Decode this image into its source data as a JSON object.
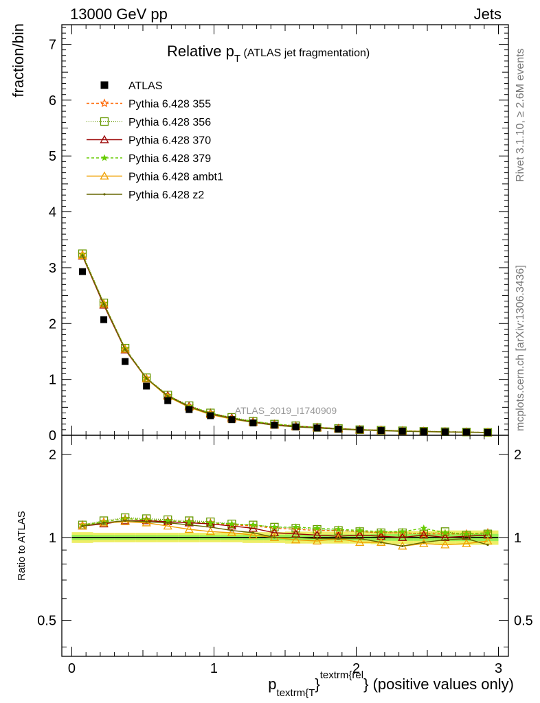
{
  "header": {
    "left": "13000 GeV pp",
    "right": "Jets",
    "title_main": "Relative p",
    "title_sub": "T",
    "title_rest": " (ATLAS jet fragmentation)",
    "analysis_tag": "ATLAS_2019_I1740909",
    "side_rivet": "Rivet 3.1.10, ≥ 2.6M events",
    "side_mcplots": "mcplots.cern.ch [arXiv:1306.3436]"
  },
  "axes": {
    "ylabel_main": "fraction/bin",
    "ylabel_ratio": "Ratio to ATLAS",
    "xlabel_p": "p",
    "xlabel_sub": "textrm{T",
    "xlabel_brace": "}",
    "xlabel_sup": "textrm{rel",
    "xlabel_rest": "} (positive values only)",
    "main_yticks": [
      "0",
      "1",
      "2",
      "3",
      "4",
      "5",
      "6",
      "7"
    ],
    "ratio_yticks": [
      "0.5",
      "1",
      "2"
    ],
    "xticks": [
      "0",
      "1",
      "2",
      "3"
    ]
  },
  "chart_data": [
    {
      "type": "line",
      "panel": "main",
      "xlim": [
        -0.07,
        3.07
      ],
      "ylim": [
        0,
        7.35
      ],
      "x": [
        0.075,
        0.225,
        0.375,
        0.525,
        0.675,
        0.825,
        0.975,
        1.125,
        1.275,
        1.425,
        1.575,
        1.725,
        1.875,
        2.025,
        2.175,
        2.325,
        2.475,
        2.625,
        2.775,
        2.925
      ],
      "reference": {
        "name": "ATLAS",
        "values": [
          2.93,
          2.07,
          1.32,
          0.88,
          0.62,
          0.46,
          0.35,
          0.28,
          0.22,
          0.18,
          0.15,
          0.13,
          0.11,
          0.095,
          0.085,
          0.075,
          0.068,
          0.06,
          0.055,
          0.05
        ]
      },
      "series": [
        {
          "name": "Pythia 6.428 355",
          "color": "#ff6600",
          "dash": "4,3",
          "marker": "star",
          "values": [
            3.24,
            2.36,
            1.55,
            1.02,
            0.71,
            0.52,
            0.4,
            0.31,
            0.25,
            0.2,
            0.17,
            0.14,
            0.12,
            0.1,
            0.09,
            0.08,
            0.07,
            0.063,
            0.057,
            0.052
          ]
        },
        {
          "name": "Pythia 6.428 356",
          "color": "#669900",
          "dash": "1,2",
          "marker": "square-open",
          "values": [
            3.25,
            2.37,
            1.56,
            1.03,
            0.72,
            0.53,
            0.4,
            0.32,
            0.25,
            0.2,
            0.17,
            0.14,
            0.12,
            0.1,
            0.09,
            0.08,
            0.07,
            0.064,
            0.058,
            0.052
          ]
        },
        {
          "name": "Pythia 6.428 370",
          "color": "#990000",
          "dash": "",
          "marker": "triangle-open",
          "values": [
            3.21,
            2.33,
            1.53,
            1.01,
            0.71,
            0.52,
            0.39,
            0.31,
            0.24,
            0.19,
            0.16,
            0.14,
            0.12,
            0.1,
            0.09,
            0.075,
            0.07,
            0.06,
            0.056,
            0.051
          ]
        },
        {
          "name": "Pythia 6.428 379",
          "color": "#66cc00",
          "dash": "4,3",
          "marker": "star-small",
          "values": [
            3.24,
            2.36,
            1.55,
            1.02,
            0.71,
            0.52,
            0.4,
            0.31,
            0.25,
            0.2,
            0.17,
            0.14,
            0.12,
            0.1,
            0.09,
            0.08,
            0.07,
            0.063,
            0.057,
            0.052
          ]
        },
        {
          "name": "Pythia 6.428 ambt1",
          "color": "#f0a000",
          "dash": "",
          "marker": "triangle-open",
          "values": [
            3.22,
            2.35,
            1.54,
            1.01,
            0.69,
            0.5,
            0.37,
            0.29,
            0.23,
            0.18,
            0.15,
            0.13,
            0.11,
            0.093,
            0.082,
            0.072,
            0.065,
            0.058,
            0.053,
            0.049
          ]
        },
        {
          "name": "Pythia 6.428 z2",
          "color": "#666600",
          "dash": "",
          "marker": "dot",
          "values": [
            3.22,
            2.35,
            1.54,
            1.02,
            0.7,
            0.51,
            0.38,
            0.3,
            0.23,
            0.18,
            0.15,
            0.13,
            0.11,
            0.095,
            0.082,
            0.07,
            0.065,
            0.059,
            0.055,
            0.049
          ]
        }
      ]
    },
    {
      "type": "line",
      "panel": "ratio",
      "xlim": [
        -0.07,
        3.07
      ],
      "ylim": [
        0.37,
        2.35
      ],
      "yscale": "log",
      "x": [
        0.075,
        0.225,
        0.375,
        0.525,
        0.675,
        0.825,
        0.975,
        1.125,
        1.275,
        1.425,
        1.575,
        1.725,
        1.875,
        2.025,
        2.175,
        2.325,
        2.475,
        2.625,
        2.775,
        2.925
      ],
      "reference_band": {
        "inner_color": "#99ee55",
        "outer_color": "#eeee66",
        "inner_halfwidth": [
          0.022,
          0.02,
          0.02,
          0.02,
          0.02,
          0.02,
          0.02,
          0.02,
          0.022,
          0.022,
          0.025,
          0.025,
          0.025,
          0.025,
          0.028,
          0.028,
          0.028,
          0.03,
          0.03,
          0.03
        ],
        "outer_halfwidth": [
          0.045,
          0.04,
          0.04,
          0.04,
          0.04,
          0.04,
          0.04,
          0.04,
          0.045,
          0.045,
          0.05,
          0.05,
          0.05,
          0.05,
          0.055,
          0.055,
          0.055,
          0.06,
          0.06,
          0.06
        ]
      },
      "series": [
        {
          "name": "Pythia 6.428 355",
          "values": [
            1.11,
            1.14,
            1.17,
            1.16,
            1.15,
            1.14,
            1.13,
            1.11,
            1.1,
            1.08,
            1.07,
            1.06,
            1.06,
            1.05,
            1.04,
            1.04,
            1.03,
            1.03,
            1.03,
            1.04
          ]
        },
        {
          "name": "Pythia 6.428 356",
          "values": [
            1.11,
            1.15,
            1.18,
            1.17,
            1.16,
            1.15,
            1.14,
            1.12,
            1.11,
            1.09,
            1.08,
            1.07,
            1.06,
            1.05,
            1.04,
            1.04,
            1.03,
            1.05,
            1.02,
            1.03
          ]
        },
        {
          "name": "Pythia 6.428 370",
          "values": [
            1.1,
            1.12,
            1.15,
            1.15,
            1.14,
            1.13,
            1.12,
            1.1,
            1.08,
            1.04,
            1.03,
            1.02,
            1.01,
            1.02,
            1.01,
            1.0,
            1.02,
            1.0,
            1.01,
            1.02
          ]
        },
        {
          "name": "Pythia 6.428 379",
          "values": [
            1.11,
            1.14,
            1.17,
            1.16,
            1.15,
            1.14,
            1.13,
            1.12,
            1.11,
            1.09,
            1.09,
            1.08,
            1.07,
            1.06,
            1.05,
            1.05,
            1.08,
            1.04,
            1.03,
            1.04
          ]
        },
        {
          "name": "Pythia 6.428 ambt1",
          "values": [
            1.1,
            1.13,
            1.14,
            1.13,
            1.1,
            1.07,
            1.05,
            1.04,
            1.02,
            1.0,
            0.98,
            0.97,
            0.99,
            0.96,
            0.96,
            0.93,
            0.95,
            0.94,
            0.95,
            0.97
          ]
        },
        {
          "name": "Pythia 6.428 z2",
          "values": [
            1.1,
            1.13,
            1.15,
            1.14,
            1.13,
            1.11,
            1.09,
            1.06,
            1.04,
            1.0,
            1.0,
            0.99,
            0.99,
            0.99,
            0.96,
            0.93,
            0.96,
            0.98,
            0.99,
            0.94
          ]
        }
      ]
    }
  ]
}
